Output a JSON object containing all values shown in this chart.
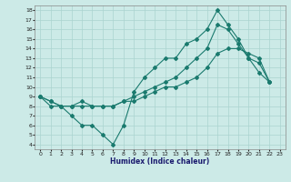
{
  "xlabel": "Humidex (Indice chaleur)",
  "background_color": "#cceae7",
  "grid_color": "#aad4d0",
  "line_color": "#1a7a6e",
  "xlim": [
    -0.5,
    23.5
  ],
  "ylim": [
    3.5,
    18.5
  ],
  "xticks": [
    0,
    1,
    2,
    3,
    4,
    5,
    6,
    7,
    8,
    9,
    10,
    11,
    12,
    13,
    14,
    15,
    16,
    17,
    18,
    19,
    20,
    21,
    22,
    23
  ],
  "yticks": [
    4,
    5,
    6,
    7,
    8,
    9,
    10,
    11,
    12,
    13,
    14,
    15,
    16,
    17,
    18
  ],
  "line1_x": [
    0,
    1,
    2,
    3,
    4,
    5,
    6,
    7,
    8,
    9,
    10,
    11,
    12,
    13,
    14,
    15,
    16,
    17,
    18,
    19,
    20,
    21,
    22
  ],
  "line1_y": [
    9,
    8,
    8,
    7,
    6,
    6,
    5,
    4,
    6,
    9.5,
    11,
    12,
    13,
    13,
    14.5,
    15,
    16,
    18,
    16.5,
    15,
    13,
    11.5,
    10.5
  ],
  "line2_x": [
    0,
    1,
    2,
    3,
    4,
    5,
    6,
    7,
    8,
    9,
    10,
    11,
    12,
    13,
    14,
    15,
    16,
    17,
    18,
    19,
    20,
    21,
    22
  ],
  "line2_y": [
    9,
    8.5,
    8,
    8,
    8.5,
    8,
    8,
    8,
    8.5,
    9,
    9.5,
    10,
    10.5,
    11,
    12,
    13,
    14,
    16.5,
    16,
    14.5,
    13,
    12.5,
    10.5
  ],
  "line3_x": [
    0,
    1,
    2,
    3,
    4,
    5,
    6,
    7,
    8,
    9,
    10,
    11,
    12,
    13,
    14,
    15,
    16,
    17,
    18,
    19,
    20,
    21,
    22
  ],
  "line3_y": [
    9,
    8.5,
    8,
    8,
    8,
    8,
    8,
    8,
    8.5,
    8.5,
    9,
    9.5,
    10,
    10,
    10.5,
    11,
    12,
    13.5,
    14,
    14,
    13.5,
    13,
    10.5
  ]
}
